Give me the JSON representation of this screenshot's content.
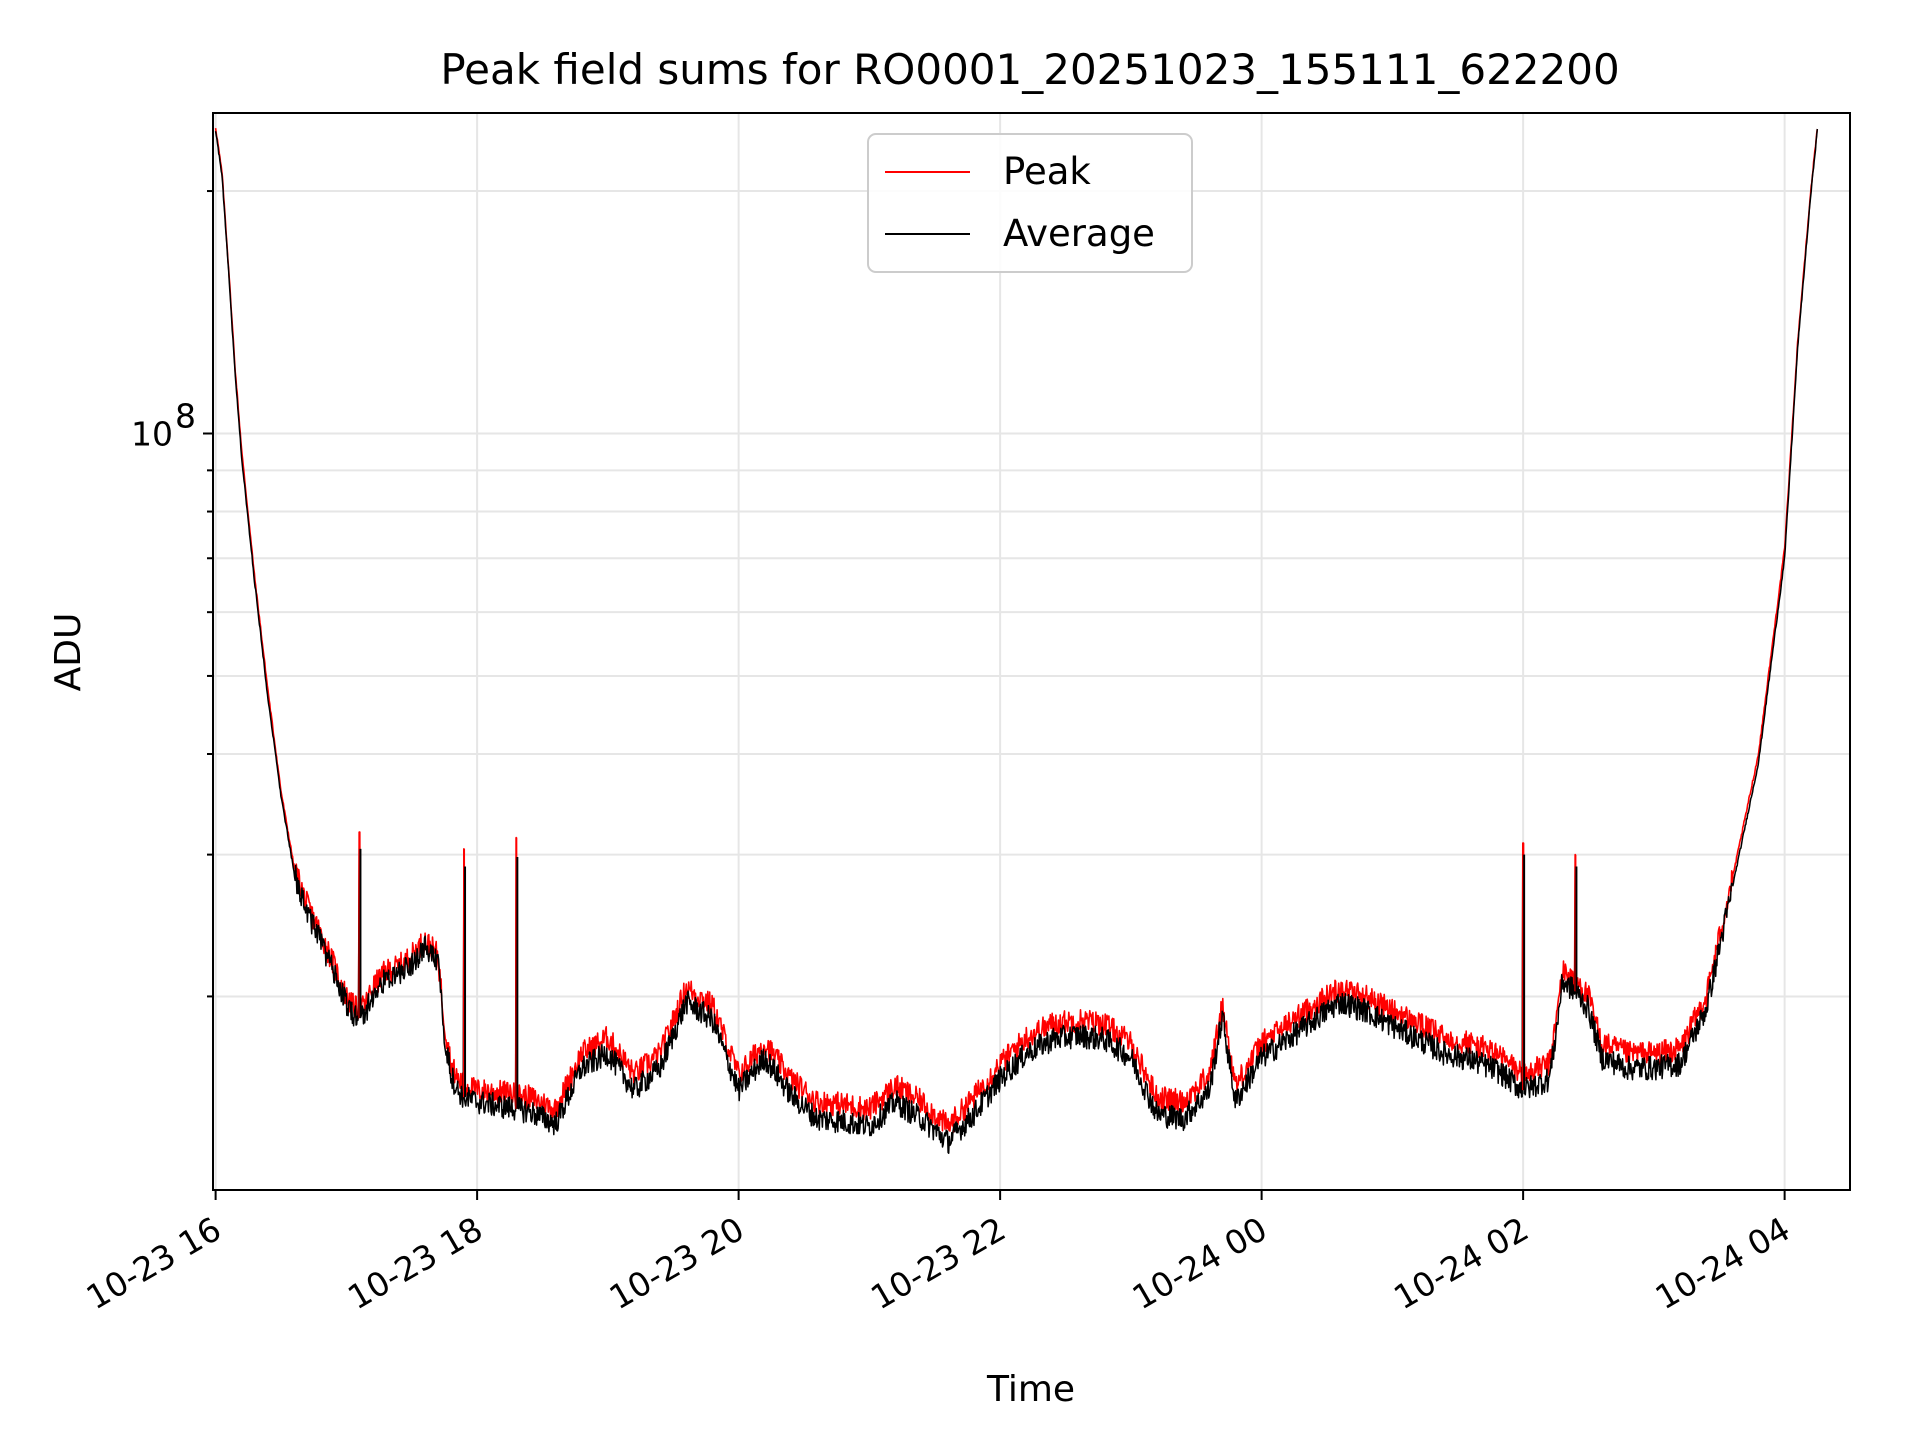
{
  "chart_data": {
    "type": "line",
    "title": "Peak field sums for RO0001_20251023_155111_622200",
    "xlabel": "Time",
    "ylabel": "ADU",
    "yscale": "log",
    "ylim": [
      11500000,
      250000000
    ],
    "xlim_hours": [
      -0.02,
      12.5
    ],
    "x_tick_hours": [
      0,
      2,
      4,
      6,
      8,
      10,
      12
    ],
    "x_tick_labels": [
      "10-23 16",
      "10-23 18",
      "10-23 20",
      "10-23 22",
      "10-24 00",
      "10-24 02",
      "10-24 04"
    ],
    "y_major_label": "10",
    "y_major_exponent": "8",
    "grid": true,
    "legend_position": "upper center",
    "colors": {
      "peak": "#ff0000",
      "average": "#000000"
    },
    "series": [
      {
        "name": "Peak",
        "x_hours": [
          0,
          0.05,
          0.1,
          0.15,
          0.2,
          0.3,
          0.4,
          0.5,
          0.6,
          0.7,
          0.8,
          0.9,
          1.0,
          1.05,
          1.1,
          1.15,
          1.2,
          1.3,
          1.4,
          1.5,
          1.6,
          1.7,
          1.75,
          1.8,
          1.85,
          1.9,
          1.95,
          2.0,
          2.2,
          2.4,
          2.6,
          2.8,
          3.0,
          3.2,
          3.4,
          3.6,
          3.8,
          4.0,
          4.2,
          4.4,
          4.6,
          4.8,
          5.0,
          5.2,
          5.4,
          5.6,
          5.8,
          6.0,
          6.2,
          6.4,
          6.6,
          6.8,
          7.0,
          7.2,
          7.4,
          7.6,
          7.7,
          7.8,
          7.9,
          8.0,
          8.2,
          8.4,
          8.6,
          8.8,
          9.0,
          9.2,
          9.4,
          9.6,
          9.8,
          10.0,
          10.2,
          10.25,
          10.3,
          10.4,
          10.5,
          10.6,
          10.8,
          11.0,
          11.2,
          11.4,
          11.6,
          11.8,
          12.0,
          12.1,
          12.2,
          12.25
        ],
        "values": [
          240000000,
          210000000,
          160000000,
          120000000,
          95000000,
          66000000,
          48000000,
          36000000,
          29000000,
          26000000,
          24000000,
          22000000,
          20000000,
          19500000,
          19200000,
          19600000,
          20500000,
          21500000,
          21800000,
          22500000,
          23500000,
          22500000,
          18500000,
          16500000,
          15800000,
          15500000,
          15400000,
          15300000,
          15200000,
          15000000,
          14500000,
          17000000,
          17800000,
          16000000,
          17000000,
          20500000,
          19500000,
          16000000,
          17500000,
          15800000,
          14800000,
          14700000,
          14500000,
          15500000,
          14800000,
          13800000,
          15000000,
          16500000,
          17800000,
          18500000,
          18700000,
          18500000,
          17500000,
          15000000,
          14800000,
          16000000,
          19500000,
          15500000,
          16500000,
          17500000,
          18500000,
          19500000,
          20500000,
          20000000,
          19200000,
          18500000,
          17800000,
          17500000,
          17000000,
          16000000,
          16500000,
          18500000,
          21500000,
          21000000,
          20000000,
          17500000,
          17000000,
          17000000,
          17200000,
          20000000,
          28000000,
          40000000,
          72000000,
          130000000,
          200000000,
          240000000
        ]
      },
      {
        "name": "Average",
        "x_hours": [
          0,
          0.05,
          0.1,
          0.15,
          0.2,
          0.3,
          0.4,
          0.5,
          0.6,
          0.7,
          0.8,
          0.9,
          1.0,
          1.05,
          1.1,
          1.15,
          1.2,
          1.3,
          1.4,
          1.5,
          1.6,
          1.7,
          1.75,
          1.8,
          1.85,
          1.9,
          1.95,
          2.0,
          2.2,
          2.4,
          2.6,
          2.8,
          3.0,
          3.2,
          3.4,
          3.6,
          3.8,
          4.0,
          4.2,
          4.4,
          4.6,
          4.8,
          5.0,
          5.2,
          5.4,
          5.6,
          5.8,
          6.0,
          6.2,
          6.4,
          6.6,
          6.8,
          7.0,
          7.2,
          7.4,
          7.6,
          7.7,
          7.8,
          7.9,
          8.0,
          8.2,
          8.4,
          8.6,
          8.8,
          9.0,
          9.2,
          9.4,
          9.6,
          9.8,
          10.0,
          10.2,
          10.25,
          10.3,
          10.4,
          10.5,
          10.6,
          10.8,
          11.0,
          11.2,
          11.4,
          11.6,
          11.8,
          12.0,
          12.1,
          12.2,
          12.25
        ],
        "values": [
          238000000,
          208000000,
          158000000,
          118000000,
          93000000,
          65000000,
          47000000,
          35500000,
          28500000,
          25500000,
          23500000,
          21500000,
          19600000,
          19000000,
          18800000,
          19200000,
          20000000,
          21000000,
          21300000,
          22000000,
          23000000,
          22000000,
          18000000,
          16000000,
          15300000,
          15000000,
          14900000,
          14800000,
          14600000,
          14400000,
          13900000,
          16300000,
          17000000,
          15300000,
          16300000,
          19700000,
          18700000,
          15300000,
          16800000,
          15100000,
          14100000,
          14000000,
          13800000,
          14800000,
          14100000,
          13200000,
          14300000,
          15800000,
          17000000,
          17700000,
          17900000,
          17700000,
          16800000,
          14300000,
          14100000,
          15300000,
          18900000,
          14800000,
          15800000,
          16800000,
          17700000,
          18700000,
          19700000,
          19200000,
          18400000,
          17700000,
          17000000,
          16700000,
          16200000,
          15300000,
          15800000,
          17900000,
          20900000,
          20300000,
          19300000,
          16800000,
          16300000,
          16300000,
          16500000,
          19300000,
          27300000,
          39000000,
          70000000,
          128000000,
          198000000,
          238000000
        ]
      }
    ],
    "spikes": [
      {
        "x_hours": 1.1,
        "peak": 32000000,
        "average": 30500000
      },
      {
        "x_hours": 1.9,
        "peak": 30500000,
        "average": 29000000
      },
      {
        "x_hours": 2.3,
        "peak": 31500000,
        "average": 29800000
      },
      {
        "x_hours": 10.0,
        "peak": 31000000,
        "average": 30000000
      },
      {
        "x_hours": 10.4,
        "peak": 30000000,
        "average": 29000000
      }
    ]
  }
}
